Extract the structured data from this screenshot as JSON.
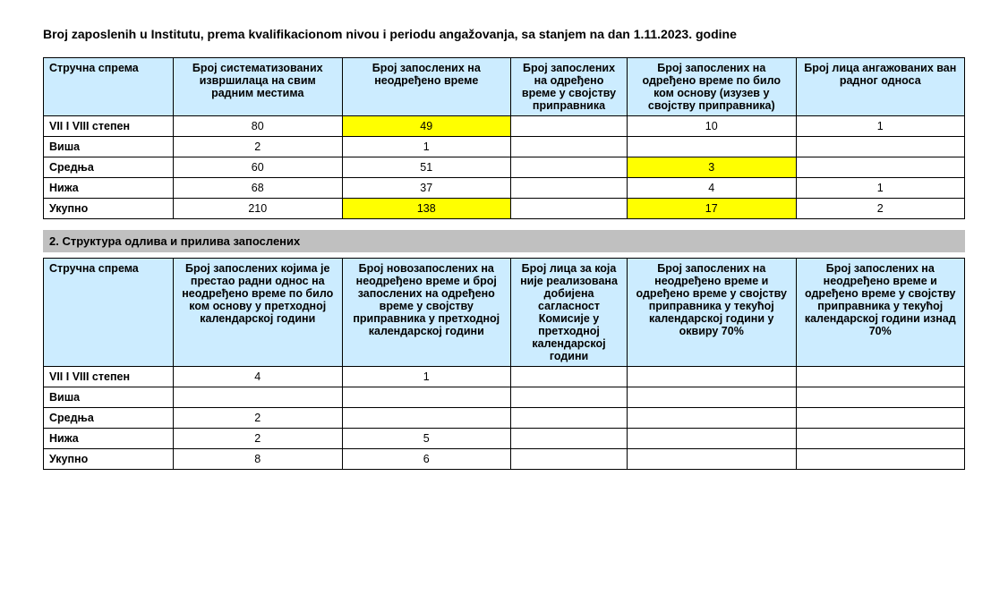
{
  "title": "Broj zaposlenih u Institutu, prema kvalifikacionom nivou i periodu angažovanja, sa stanjem na dan 1.11.2023. godine",
  "table1": {
    "headers": [
      "Стручна спрема",
      "Број систематизованих извршилаца на свим радним местима",
      "Број запослених на неодређено време",
      "Број запослених на одређено време у својству приправника",
      "Број запослених на одређено време по било ком основу (изузев у својству приправника)",
      "Број лица ангажованих ван радног односа"
    ],
    "rows": [
      {
        "label": "VII I VIII степен",
        "c1": "80",
        "c2": "49",
        "c3": "",
        "c4": "10",
        "c5": "1",
        "hl2": true
      },
      {
        "label": "Виша",
        "c1": "2",
        "c2": "1",
        "c3": "",
        "c4": "",
        "c5": ""
      },
      {
        "label": "Средња",
        "c1": "60",
        "c2": "51",
        "c3": "",
        "c4": "3",
        "c5": "",
        "hl4": true
      },
      {
        "label": "Нижа",
        "c1": "68",
        "c2": "37",
        "c3": "",
        "c4": "4",
        "c5": "1"
      },
      {
        "label": "Укупно",
        "c1": "210",
        "c2": "138",
        "c3": "",
        "c4": "17",
        "c5": "2",
        "hl2": true,
        "hl4": true
      }
    ]
  },
  "section2_title": "2. Структура одлива и прилива запослених",
  "table2": {
    "headers": [
      "Стручна спрема",
      "Број запослених којима је престао радни однос на неодређено време по било ком основу у претходној календарској години",
      "Број новозапослених на неодређено време и број запослених на одређено време у својству приправника у претходној календарској години",
      "Број лица за која није реализована добијена сагласност Комисије у претходној календарској години",
      "Број запослених на неодређено време и одређено време у својству приправника у текућој календарској години у оквиру 70%",
      "Број запослених на неодређено време и одређено време у својству приправника у текућој календарској години изнад 70%"
    ],
    "rows": [
      {
        "label": "VII I VIII степен",
        "c1": "4",
        "c2": "1",
        "c3": "",
        "c4": "",
        "c5": ""
      },
      {
        "label": "Виша",
        "c1": "",
        "c2": "",
        "c3": "",
        "c4": "",
        "c5": ""
      },
      {
        "label": "Средња",
        "c1": "2",
        "c2": "",
        "c3": "",
        "c4": "",
        "c5": ""
      },
      {
        "label": "Нижа",
        "c1": "2",
        "c2": "5",
        "c3": "",
        "c4": "",
        "c5": ""
      },
      {
        "label": "Укупно",
        "c1": "8",
        "c2": "6",
        "c3": "",
        "c4": "",
        "c5": ""
      }
    ]
  },
  "colors": {
    "header_bg": "#ccecff",
    "highlight_bg": "#ffff00",
    "section_bg": "#c0c0c0",
    "border": "#000000",
    "background": "#ffffff"
  }
}
